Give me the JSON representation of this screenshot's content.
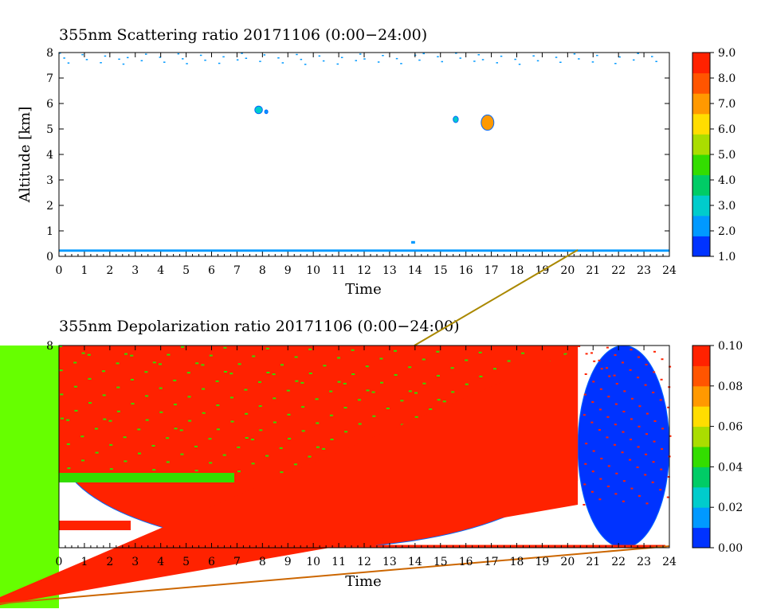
{
  "chart_data": [
    {
      "type": "heatmap",
      "title": "355nm Scattering ratio  20171106 (0:00−24:00)",
      "xlabel": "Time",
      "ylabel": "Altitude [km]",
      "xlim": [
        0,
        24
      ],
      "ylim": [
        0,
        8
      ],
      "x_ticks": [
        "0",
        "1",
        "2",
        "3",
        "4",
        "5",
        "6",
        "7",
        "8",
        "9",
        "10",
        "11",
        "12",
        "13",
        "14",
        "15",
        "16",
        "17",
        "18",
        "19",
        "20",
        "21",
        "22",
        "23",
        "24"
      ],
      "y_ticks": [
        "0",
        "1",
        "2",
        "3",
        "4",
        "5",
        "6",
        "7",
        "8"
      ],
      "colorbar": {
        "range": [
          1.0,
          9.0
        ],
        "tick_labels": [
          "1.0",
          "2.0",
          "3.0",
          "4.0",
          "5.0",
          "6.0",
          "7.0",
          "8.0",
          "9.0"
        ],
        "colors": [
          "#0033ff",
          "#0099ff",
          "#00cccc",
          "#00cc66",
          "#33dd00",
          "#aadd00",
          "#ffdd00",
          "#ff9900",
          "#ff5500",
          "#ff2200"
        ]
      },
      "features": [
        {
          "x": [
            7.7,
            8.0
          ],
          "y": [
            5.6,
            5.9
          ],
          "value": 3.0
        },
        {
          "x": [
            8.1,
            8.2
          ],
          "y": [
            5.6,
            5.75
          ],
          "value": 2.5
        },
        {
          "x": [
            15.5,
            15.7
          ],
          "y": [
            5.25,
            5.5
          ],
          "value": 3.0
        },
        {
          "x": [
            16.6,
            17.1
          ],
          "y": [
            4.95,
            5.55
          ],
          "value": 7.0
        },
        {
          "x": [
            13.85,
            14.0
          ],
          "y": [
            0.5,
            0.6
          ],
          "value": 2.0
        },
        {
          "x": [
            0.0,
            24.0
          ],
          "y": [
            0.18,
            0.27
          ],
          "value": 2.0
        },
        {
          "x": [
            0.0,
            24.0
          ],
          "y": [
            7.0,
            8.0
          ],
          "value": 2.0
        }
      ]
    },
    {
      "type": "heatmap",
      "title": "355nm Depolarization ratio  20171106 (0:00−24:00)",
      "xlabel": "Time",
      "ylabel": "",
      "xlim": [
        0,
        24
      ],
      "ylim": [
        0,
        8
      ],
      "x_ticks": [
        "0",
        "1",
        "2",
        "3",
        "4",
        "5",
        "6",
        "7",
        "8",
        "9",
        "10",
        "11",
        "12",
        "13",
        "14",
        "15",
        "16",
        "17",
        "18",
        "19",
        "20",
        "21",
        "22",
        "23",
        "24"
      ],
      "y_ticks": [
        "8"
      ],
      "colorbar": {
        "range": [
          0.0,
          0.1
        ],
        "tick_labels": [
          "0.00",
          "0.02",
          "0.04",
          "0.06",
          "0.08",
          "0.10"
        ],
        "colors": [
          "#0033ff",
          "#0099ff",
          "#00cccc",
          "#00cc66",
          "#33dd00",
          "#aadd00",
          "#ffdd00",
          "#ff9900",
          "#ff5500",
          "#ff2200"
        ]
      },
      "features": [
        {
          "x": [
            0.0,
            20.4
          ],
          "y": [
            0.0,
            8.0
          ],
          "value": 0.1
        },
        {
          "x": [
            20.4,
            24.0
          ],
          "y": [
            0.0,
            8.0
          ],
          "value": 0.0
        }
      ]
    }
  ]
}
